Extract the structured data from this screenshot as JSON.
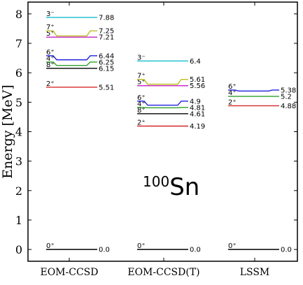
{
  "chart_data": {
    "type": "line",
    "title": "",
    "xlabel": "",
    "ylabel": "Energy [MeV]",
    "ylim": [
      -0.4,
      8.4
    ],
    "yticks": [
      0,
      1,
      2,
      3,
      4,
      5,
      6,
      7,
      8
    ],
    "grid": false,
    "categories": [
      "EOM-CCSD",
      "EOM-CCSD(T)",
      "LSSM"
    ],
    "annotation": {
      "mass": "100",
      "symbol": "Sn"
    },
    "colors": {
      "0+": "#000000",
      "2+": "#d62728",
      "8+": "#000000",
      "4+": "#2ca02c",
      "6+": "#1f1fdd",
      "5+": "#c51fc5",
      "7+": "#bcbd22",
      "3-": "#17becf"
    },
    "columns": [
      {
        "name": "EOM-CCSD",
        "levels": [
          {
            "state": "0+",
            "label": "0⁺",
            "energy": 0.0,
            "value_text": "0.0"
          },
          {
            "state": "2+",
            "label": "2⁺",
            "energy": 5.51,
            "value_text": "5.51"
          },
          {
            "state": "8+",
            "label": "8⁺",
            "energy": 6.15,
            "value_text": "6.15"
          },
          {
            "state": "4+",
            "label": "4⁺",
            "energy": 6.25,
            "value_text": "6.25"
          },
          {
            "state": "6+",
            "label": "6⁺",
            "energy": 6.44,
            "value_text": "6.44"
          },
          {
            "state": "5+",
            "label": "5⁺",
            "energy": 7.21,
            "value_text": "7.21"
          },
          {
            "state": "7+",
            "label": "7⁺",
            "energy": 7.25,
            "value_text": "7.25"
          },
          {
            "state": "3-",
            "label": "3⁻",
            "energy": 7.88,
            "value_text": "7.88"
          }
        ]
      },
      {
        "name": "EOM-CCSD(T)",
        "levels": [
          {
            "state": "0+",
            "label": "0⁺",
            "energy": 0.0,
            "value_text": "0.0"
          },
          {
            "state": "2+",
            "label": "2⁺",
            "energy": 4.19,
            "value_text": "4.19"
          },
          {
            "state": "8+",
            "label": "8⁺",
            "energy": 4.61,
            "value_text": "4.61"
          },
          {
            "state": "4+",
            "label": "4⁺",
            "energy": 4.81,
            "value_text": "4.81"
          },
          {
            "state": "6+",
            "label": "6⁺",
            "energy": 4.9,
            "value_text": "4.9"
          },
          {
            "state": "5+",
            "label": "5⁺",
            "energy": 5.56,
            "value_text": "5.56"
          },
          {
            "state": "7+",
            "label": "7⁺",
            "energy": 5.61,
            "value_text": "5.61"
          },
          {
            "state": "3-",
            "label": "3⁻",
            "energy": 6.4,
            "value_text": "6.4"
          }
        ]
      },
      {
        "name": "LSSM",
        "levels": [
          {
            "state": "0+",
            "label": "0⁺",
            "energy": 0.0,
            "value_text": "0.0"
          },
          {
            "state": "2+",
            "label": "2⁺",
            "energy": 4.88,
            "value_text": "4.88"
          },
          {
            "state": "4+",
            "label": "4⁺",
            "energy": 5.2,
            "value_text": "5.2"
          },
          {
            "state": "6+",
            "label": "6⁺",
            "energy": 5.38,
            "value_text": "5.38"
          }
        ]
      }
    ]
  }
}
